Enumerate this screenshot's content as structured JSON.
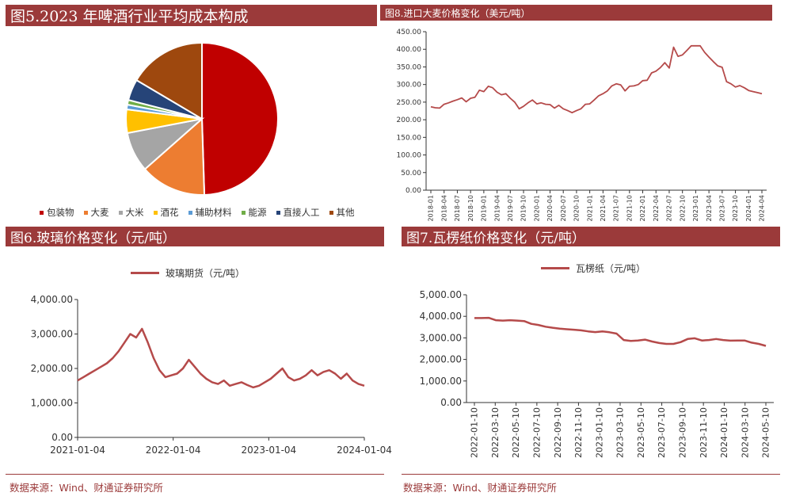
{
  "chart_data": [
    {
      "type": "pie",
      "title": "图5.2023 年啤酒行业平均成本构成",
      "slices": [
        {
          "label": "包装物",
          "value": 49.5,
          "color": "#c00000"
        },
        {
          "label": "大麦",
          "value": 14.0,
          "color": "#ed7d31"
        },
        {
          "label": "大米",
          "value": 8.5,
          "color": "#a5a5a5"
        },
        {
          "label": "酒花",
          "value": 5.0,
          "color": "#ffc000"
        },
        {
          "label": "辅助材料",
          "value": 1.0,
          "color": "#5b9bd5"
        },
        {
          "label": "能源",
          "value": 1.0,
          "color": "#70ad47"
        },
        {
          "label": "直接人工",
          "value": 4.5,
          "color": "#264478"
        },
        {
          "label": "其他",
          "value": 16.5,
          "color": "#9e480e"
        }
      ]
    },
    {
      "type": "line",
      "title": "图8.进口大麦价格变化（美元/吨）",
      "ylim": [
        0,
        450
      ],
      "yticks": [
        "0.00",
        "50.00",
        "100.00",
        "150.00",
        "200.00",
        "250.00",
        "300.00",
        "350.00",
        "400.00",
        "450.00"
      ],
      "xticks": [
        "2018-01",
        "2018-04",
        "2018-07",
        "2018-10",
        "2019-01",
        "2019-04",
        "2019-07",
        "2019-10",
        "2020-01",
        "2020-04",
        "2020-07",
        "2020-10",
        "2021-01",
        "2021-04",
        "2021-07",
        "2021-10",
        "2022-01",
        "2022-04",
        "2022-07",
        "2022-10",
        "2023-01",
        "2023-04",
        "2023-07",
        "2023-10",
        "2024-01",
        "2024-04"
      ],
      "series": [
        {
          "values": [
            237,
            234,
            233,
            244,
            248,
            253,
            257,
            262,
            251,
            261,
            264,
            284,
            280,
            295,
            291,
            278,
            271,
            274,
            261,
            250,
            231,
            238,
            248,
            256,
            245,
            248,
            244,
            243,
            233,
            241,
            231,
            226,
            220,
            226,
            231,
            244,
            245,
            256,
            268,
            274,
            282,
            296,
            302,
            299,
            282,
            295,
            296,
            300,
            311,
            312,
            333,
            338,
            348,
            362,
            347,
            406,
            380,
            384,
            397,
            410,
            410,
            410,
            392,
            378,
            365,
            353,
            349,
            308,
            302,
            293,
            297,
            291,
            283,
            280,
            277,
            274
          ]
        }
      ]
    },
    {
      "type": "line",
      "title": "图6.玻璃价格变化（元/吨）",
      "ylim": [
        0,
        4000
      ],
      "yticks": [
        "0.00",
        "1,000.00",
        "2,000.00",
        "3,000.00",
        "4,000.00"
      ],
      "xticks": [
        "2021-01-04",
        "2022-01-04",
        "2023-01-04",
        "2024-01-04"
      ],
      "series": [
        {
          "name": "玻璃期货（元/吨）",
          "values": [
            1650,
            1750,
            1850,
            1950,
            2050,
            2150,
            2300,
            2500,
            2750,
            3000,
            2900,
            3150,
            2750,
            2300,
            1950,
            1750,
            1800,
            1850,
            2000,
            2250,
            2050,
            1850,
            1700,
            1600,
            1550,
            1650,
            1500,
            1550,
            1600,
            1520,
            1450,
            1500,
            1600,
            1700,
            1850,
            2000,
            1750,
            1650,
            1700,
            1800,
            1950,
            1800,
            1900,
            1950,
            1850,
            1700,
            1850,
            1650,
            1550,
            1500
          ]
        }
      ]
    },
    {
      "type": "line",
      "title": "图7.瓦楞纸价格变化（元/吨）",
      "ylim": [
        0,
        5000
      ],
      "yticks": [
        "0.00",
        "1,000.00",
        "2,000.00",
        "3,000.00",
        "4,000.00",
        "5,000.00"
      ],
      "xticks": [
        "2022-01-10",
        "2022-03-10",
        "2022-05-10",
        "2022-07-10",
        "2022-09-10",
        "2022-11-10",
        "2023-01-10",
        "2023-03-10",
        "2023-05-10",
        "2023-07-10",
        "2023-09-10",
        "2023-11-10",
        "2024-01-10",
        "2024-03-10",
        "2024-05-10"
      ],
      "series": [
        {
          "name": "瓦楞纸（元/吨）",
          "values": [
            3920,
            3920,
            3930,
            3820,
            3800,
            3820,
            3800,
            3780,
            3650,
            3600,
            3520,
            3470,
            3430,
            3400,
            3380,
            3350,
            3300,
            3270,
            3300,
            3260,
            3200,
            2900,
            2860,
            2880,
            2920,
            2830,
            2760,
            2720,
            2720,
            2800,
            2950,
            2980,
            2880,
            2900,
            2950,
            2900,
            2870,
            2880,
            2880,
            2780,
            2720,
            2630
          ]
        }
      ]
    }
  ],
  "pie_panel": {
    "title": "图5.2023 年啤酒行业平均成本构成",
    "legend": [
      "包装物",
      "大麦",
      "大米",
      "酒花",
      "辅助材料",
      "能源",
      "直接人工",
      "其他"
    ]
  },
  "barley_panel": {
    "title": "图8.进口大麦价格变化（美元/吨）"
  },
  "glass_panel": {
    "title": "图6.玻璃价格变化（元/吨）",
    "legend": "玻璃期货（元/吨）",
    "source": "数据来源：Wind、财通证券研究所"
  },
  "paper_panel": {
    "title": "图7.瓦楞纸价格变化（元/吨）",
    "legend": "瓦楞纸（元/吨）",
    "source": "数据来源：Wind、财通证券研究所"
  },
  "line_color": "#b54a4a",
  "accent_color": "#9b3a3a"
}
